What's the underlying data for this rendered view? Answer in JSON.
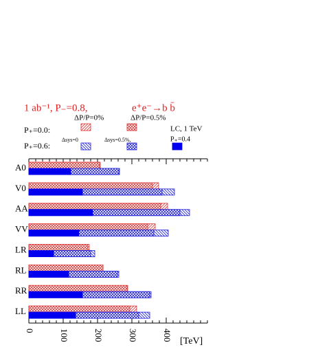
{
  "chart_data": {
    "type": "hbar-overlay",
    "title": "1 ab⁻¹, P₋=0.8,",
    "process": "e⁺e⁻→b b̄",
    "row_labels": [
      "P₊=0.0:",
      "P₊=0.6:"
    ],
    "annotations": [
      "P₊=0.4"
    ],
    "categories": [
      "A0",
      "V0",
      "AA",
      "VV",
      "LR",
      "RL",
      "RR",
      "LL"
    ],
    "series": [
      {
        "name": "ΔP/P=0%",
        "color": "#e03030",
        "pattern": "hatch",
        "lane": "upper",
        "values": [
          208,
          378,
          404,
          368,
          176,
          216,
          288,
          314
        ]
      },
      {
        "name": "ΔP/P=0.5%",
        "color": "#e03030",
        "pattern": "cross",
        "lane": "upper",
        "values": [
          206,
          360,
          384,
          346,
          172,
          216,
          286,
          294
        ]
      },
      {
        "name": "Δsys=0",
        "color": "#1a1ae0",
        "pattern": "hatch",
        "lane": "lower",
        "values": [
          264,
          424,
          468,
          406,
          192,
          262,
          356,
          352
        ]
      },
      {
        "name": "Δsys=0.5%,",
        "color": "#1a1ae0",
        "pattern": "cross",
        "lane": "lower",
        "values": [
          262,
          388,
          440,
          364,
          180,
          258,
          352,
          320
        ]
      },
      {
        "name": "LC, 1 TeV",
        "color": "#0000ee",
        "pattern": "solid",
        "lane": "lower",
        "values": [
          122,
          156,
          186,
          146,
          72,
          116,
          156,
          136
        ]
      }
    ],
    "xlabel": "[TeV]",
    "xlim": [
      0,
      520
    ],
    "xticks": [
      0,
      100,
      200,
      300,
      400
    ]
  }
}
